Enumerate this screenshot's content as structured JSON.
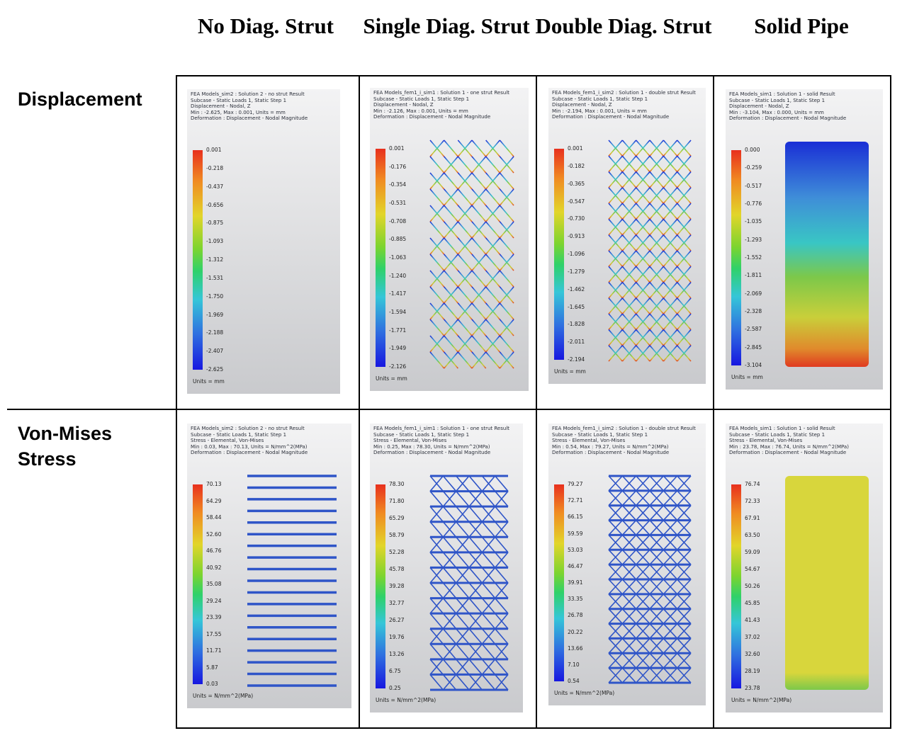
{
  "columns": [
    "No Diag. Strut",
    "Single Diag. Strut",
    "Double Diag. Strut",
    "Solid Pipe"
  ],
  "rows": [
    "Displacement",
    "Von-Mises Stress"
  ],
  "colors": {
    "high": "#e8301e",
    "mid": "#7cd42f",
    "low": "#1717e0",
    "panel_bg": "#dcdde0"
  },
  "panels": [
    {
      "header": [
        "FEA Models_sim2 : Solution 2 - no strut Result",
        "Subcase - Static Loads 1, Static Step 1",
        "Displacement - Nodal, Z",
        "Min : -2.625, Max : 0.001, Units = mm",
        "Deformation : Displacement - Nodal Magnitude"
      ],
      "ticks": [
        "0.001",
        "-0.218",
        "-0.437",
        "-0.656",
        "-0.875",
        "-1.093",
        "-1.312",
        "-1.531",
        "-1.750",
        "-1.969",
        "-2.188",
        "-2.407",
        "-2.625"
      ],
      "units": "Units = mm"
    },
    {
      "header": [
        "FEA Models_fem1_i_sim1 : Solution 1 - one strut Result",
        "Subcase - Static Loads 1, Static Step 1",
        "Displacement - Nodal, Z",
        "Min : -2.126, Max : 0.001, Units = mm",
        "Deformation : Displacement - Nodal Magnitude"
      ],
      "ticks": [
        "0.001",
        "-0.176",
        "-0.354",
        "-0.531",
        "-0.708",
        "-0.885",
        "-1.063",
        "-1.240",
        "-1.417",
        "-1.594",
        "-1.771",
        "-1.949",
        "-2.126"
      ],
      "units": "Units = mm"
    },
    {
      "header": [
        "FEA Models_fem1_i_sim2 : Solution 1 - double strut Result",
        "Subcase - Static Loads 1, Static Step 1",
        "Displacement - Nodal, Z",
        "Min : -2.194, Max : 0.001, Units = mm",
        "Deformation : Displacement - Nodal Magnitude"
      ],
      "ticks": [
        "0.001",
        "-0.182",
        "-0.365",
        "-0.547",
        "-0.730",
        "-0.913",
        "-1.096",
        "-1.279",
        "-1.462",
        "-1.645",
        "-1.828",
        "-2.011",
        "-2.194"
      ],
      "units": "Units = mm"
    },
    {
      "header": [
        "FEA Models_sim1 : Solution 1 - solid Result",
        "Subcase - Static Loads 1, Static Step 1",
        "Displacement - Nodal, Z",
        "Min : -3.104, Max : 0.000, Units = mm",
        "Deformation : Displacement - Nodal Magnitude"
      ],
      "ticks": [
        "0.000",
        "-0.259",
        "-0.517",
        "-0.776",
        "-1.035",
        "-1.293",
        "-1.552",
        "-1.811",
        "-2.069",
        "-2.328",
        "-2.587",
        "-2.845",
        "-3.104"
      ],
      "units": "Units = mm"
    },
    {
      "header": [
        "FEA Models_sim2 : Solution 2 - no strut Result",
        "Subcase - Static Loads 1, Static Step 1",
        "Stress - Elemental, Von-Mises",
        "Min : 0.03, Max : 70.13, Units = N/mm^2(MPa)",
        "Deformation : Displacement - Nodal Magnitude"
      ],
      "ticks": [
        "70.13",
        "64.29",
        "58.44",
        "52.60",
        "46.76",
        "40.92",
        "35.08",
        "29.24",
        "23.39",
        "17.55",
        "11.71",
        "5.87",
        "0.03"
      ],
      "units": "Units = N/mm^2(MPa)"
    },
    {
      "header": [
        "FEA Models_fem1_i_sim1 : Solution 1 - one strut Result",
        "Subcase - Static Loads 1, Static Step 1",
        "Stress - Elemental, Von-Mises",
        "Min : 0.25, Max : 78.30, Units = N/mm^2(MPa)",
        "Deformation : Displacement - Nodal Magnitude"
      ],
      "ticks": [
        "78.30",
        "71.80",
        "65.29",
        "58.79",
        "52.28",
        "45.78",
        "39.28",
        "32.77",
        "26.27",
        "19.76",
        "13.26",
        "6.75",
        "0.25"
      ],
      "units": "Units = N/mm^2(MPa)"
    },
    {
      "header": [
        "FEA Models_fem1_i_sim2 : Solution 1 - double strut Result",
        "Subcase - Static Loads 1, Static Step 1",
        "Stress - Elemental, Von-Mises",
        "Min : 0.54, Max : 79.27, Units = N/mm^2(MPa)",
        "Deformation : Displacement - Nodal Magnitude"
      ],
      "ticks": [
        "79.27",
        "72.71",
        "66.15",
        "59.59",
        "53.03",
        "46.47",
        "39.91",
        "33.35",
        "26.78",
        "20.22",
        "13.66",
        "7.10",
        "0.54"
      ],
      "units": "Units = N/mm^2(MPa)"
    },
    {
      "header": [
        "FEA Models_sim1 : Solution 1 - solid Result",
        "Subcase - Static Loads 1, Static Step 1",
        "Stress - Elemental, Von-Mises",
        "Min : 23.78, Max : 76.74, Units = N/mm^2(MPa)",
        "Deformation : Displacement - Nodal Magnitude"
      ],
      "ticks": [
        "76.74",
        "72.33",
        "67.91",
        "63.50",
        "59.09",
        "54.67",
        "50.26",
        "45.85",
        "41.43",
        "37.02",
        "32.60",
        "28.19",
        "23.78"
      ],
      "units": "Units = N/mm^2(MPa)"
    }
  ]
}
